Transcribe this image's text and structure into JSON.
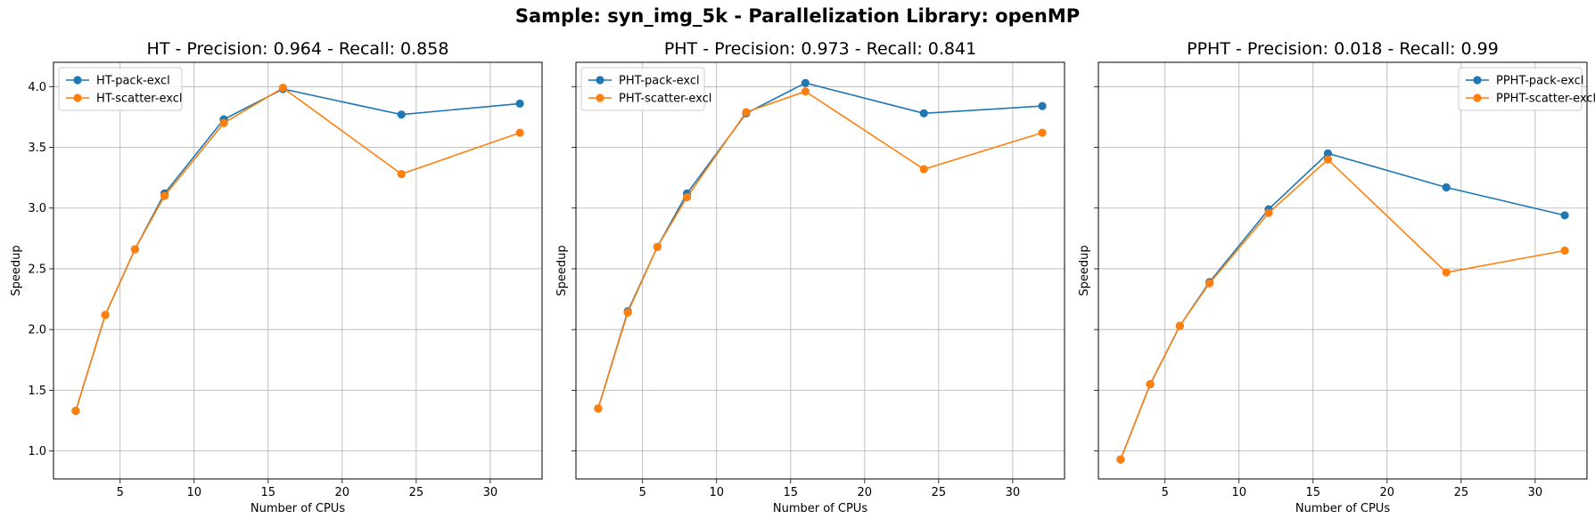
{
  "figure": {
    "title": "Sample: syn_img_5k - Parallelization Library: openMP"
  },
  "chart_data": [
    {
      "type": "line",
      "title": "HT - Precision: 0.964 - Recall: 0.858",
      "xlabel": "Number of CPUs",
      "ylabel": "Speedup",
      "xlim": [
        0.5,
        33.5
      ],
      "ylim": [
        0.77,
        4.2
      ],
      "xticks": [
        5,
        10,
        15,
        20,
        25,
        30
      ],
      "yticks": [
        1.0,
        1.5,
        2.0,
        2.5,
        3.0,
        3.5,
        4.0
      ],
      "show_y_tick_labels": true,
      "grid": true,
      "legend_position": "upper-left",
      "x": [
        2,
        4,
        6,
        8,
        12,
        16,
        24,
        32
      ],
      "series": [
        {
          "name": "HT-pack-excl",
          "color": "#1f77b4",
          "values": [
            1.33,
            2.12,
            2.66,
            3.12,
            3.73,
            3.98,
            3.77,
            3.86
          ]
        },
        {
          "name": "HT-scatter-excl",
          "color": "#ff7f0e",
          "values": [
            1.33,
            2.12,
            2.66,
            3.1,
            3.7,
            3.99,
            3.28,
            3.62
          ]
        }
      ]
    },
    {
      "type": "line",
      "title": "PHT - Precision: 0.973 - Recall: 0.841",
      "xlabel": "Number of CPUs",
      "ylabel": "Speedup",
      "xlim": [
        0.5,
        33.5
      ],
      "ylim": [
        0.77,
        4.2
      ],
      "xticks": [
        5,
        10,
        15,
        20,
        25,
        30
      ],
      "yticks": [
        1.0,
        1.5,
        2.0,
        2.5,
        3.0,
        3.5,
        4.0
      ],
      "show_y_tick_labels": false,
      "grid": true,
      "legend_position": "upper-left",
      "x": [
        2,
        4,
        6,
        8,
        12,
        16,
        24,
        32
      ],
      "series": [
        {
          "name": "PHT-pack-excl",
          "color": "#1f77b4",
          "values": [
            1.35,
            2.15,
            2.68,
            3.12,
            3.78,
            4.03,
            3.78,
            3.84
          ]
        },
        {
          "name": "PHT-scatter-excl",
          "color": "#ff7f0e",
          "values": [
            1.35,
            2.14,
            2.68,
            3.09,
            3.79,
            3.96,
            3.32,
            3.62
          ]
        }
      ]
    },
    {
      "type": "line",
      "title": "PPHT - Precision: 0.018 - Recall: 0.99",
      "xlabel": "Number of CPUs",
      "ylabel": "Speedup",
      "xlim": [
        0.5,
        33.5
      ],
      "ylim": [
        0.77,
        4.2
      ],
      "xticks": [
        5,
        10,
        15,
        20,
        25,
        30
      ],
      "yticks": [
        1.0,
        1.5,
        2.0,
        2.5,
        3.0,
        3.5,
        4.0
      ],
      "show_y_tick_labels": false,
      "grid": true,
      "legend_position": "upper-right",
      "x": [
        2,
        4,
        6,
        8,
        12,
        16,
        24,
        32
      ],
      "series": [
        {
          "name": "PPHT-pack-excl",
          "color": "#1f77b4",
          "values": [
            0.93,
            1.55,
            2.03,
            2.39,
            2.99,
            3.45,
            3.17,
            2.94
          ]
        },
        {
          "name": "PPHT-scatter-excl",
          "color": "#ff7f0e",
          "values": [
            0.93,
            1.55,
            2.03,
            2.38,
            2.96,
            3.4,
            2.47,
            2.65
          ]
        }
      ]
    }
  ]
}
